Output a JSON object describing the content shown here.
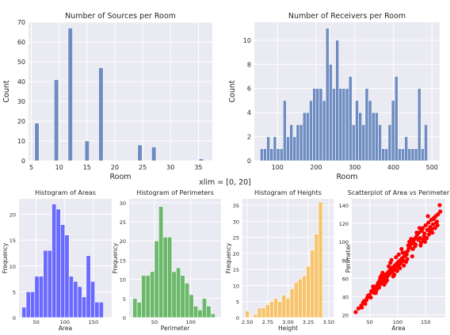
{
  "suptitle": "xlim = [0, 20]",
  "colors": {
    "panel_bg": "#eaeaf2",
    "grid": "#ffffff",
    "steel": "#6d8cc1",
    "blue": "#6a6aff",
    "green": "#6bb86b",
    "orange": "#f7c46c",
    "red": "#ff0000"
  },
  "chart_data": [
    {
      "type": "bar",
      "title": "Number of Sources per Room",
      "xlabel": "Room",
      "ylabel": "Count",
      "xlim": [
        4.5,
        37.5
      ],
      "ylim": [
        0,
        70
      ],
      "xticks": [
        5,
        10,
        15,
        20,
        25,
        30,
        35
      ],
      "yticks": [
        0,
        10,
        20,
        30,
        40,
        50,
        60,
        70
      ],
      "bin_width": 0.8,
      "bins": [
        {
          "x": 6.0,
          "y": 19
        },
        {
          "x": 9.5,
          "y": 41
        },
        {
          "x": 12.0,
          "y": 67
        },
        {
          "x": 15.0,
          "y": 10
        },
        {
          "x": 17.5,
          "y": 47
        },
        {
          "x": 24.5,
          "y": 8
        },
        {
          "x": 27.0,
          "y": 7
        },
        {
          "x": 35.5,
          "y": 1
        }
      ],
      "grid": true
    },
    {
      "type": "bar",
      "title": "Number of Receivers per Room",
      "xlabel": "Room",
      "ylabel": "Count",
      "xlim": [
        40,
        520
      ],
      "ylim": [
        0,
        11.5
      ],
      "xticks": [
        100,
        200,
        300,
        400,
        500
      ],
      "yticks": [
        0,
        2,
        4,
        6,
        8,
        10
      ],
      "bin_start": 55,
      "bin_width": 8.5,
      "counts": [
        1,
        1,
        2,
        1,
        2,
        1,
        1,
        5,
        2,
        3,
        2,
        3,
        3,
        4,
        4,
        5,
        6,
        6,
        6,
        5,
        11,
        8,
        6,
        10,
        6,
        6,
        6,
        7,
        3,
        5,
        4,
        3,
        6,
        5,
        4,
        4,
        3,
        1,
        1,
        3,
        5,
        7,
        1,
        1,
        2,
        1,
        1,
        1,
        6,
        1,
        3
      ],
      "grid": true
    },
    {
      "type": "bar",
      "title": "Histogram of Areas",
      "xlabel": "Area",
      "ylabel": "Frequency",
      "xlim": [
        20,
        182
      ],
      "ylim": [
        0,
        23
      ],
      "xticks": [
        50,
        100,
        150
      ],
      "yticks": [
        0,
        5,
        10,
        15,
        20
      ],
      "bin_start": 25,
      "bin_width": 7.5,
      "counts": [
        2,
        5,
        5,
        8,
        8,
        13,
        13,
        22,
        21,
        18,
        16,
        8,
        7,
        6,
        4,
        12,
        7,
        3,
        3
      ],
      "grid": true
    },
    {
      "type": "bar",
      "title": "Histogram of Perimeters",
      "xlabel": "Perimeter",
      "ylabel": "Frequency",
      "xlim": [
        15,
        142
      ],
      "ylim": [
        0,
        31
      ],
      "xticks": [
        50,
        100
      ],
      "yticks": [
        0,
        5,
        10,
        15,
        20,
        25,
        30
      ],
      "bin_start": 20,
      "bin_width": 6,
      "counts": [
        5,
        4,
        11,
        11,
        12,
        20,
        29,
        21,
        21,
        12,
        13,
        11,
        9,
        6,
        3,
        2,
        5,
        3,
        1
      ],
      "grid": true
    },
    {
      "type": "bar",
      "title": "Histogram of Heights",
      "xlabel": "Height",
      "ylabel": "Frequency",
      "xlim": [
        2.44,
        3.56
      ],
      "ylim": [
        0,
        37
      ],
      "xticks": [
        2.5,
        2.75,
        3.0,
        3.25,
        3.5
      ],
      "xticklabels": [
        "2.50",
        "2.75",
        "3.00",
        "3.25",
        "3.50"
      ],
      "yticks": [
        0,
        5,
        10,
        15,
        20,
        25,
        30,
        35
      ],
      "bin_start": 2.475,
      "bin_width": 0.05,
      "counts": [
        2,
        0,
        1,
        3,
        3,
        4,
        5,
        6,
        5,
        7,
        6,
        9,
        11,
        12,
        13,
        16,
        21,
        26,
        36
      ],
      "grid": true
    },
    {
      "type": "scatter",
      "title": "Scatterplot of Area vs Perimeter",
      "xlabel": "Area",
      "ylabel": "Perimeter",
      "xlim": [
        18,
        185
      ],
      "ylim": [
        17,
        147
      ],
      "xticks": [
        50,
        100,
        150
      ],
      "yticks": [
        20,
        40,
        60,
        80,
        100,
        120,
        140
      ],
      "points": [
        [
          25,
          23
        ],
        [
          30,
          27
        ],
        [
          35,
          30
        ],
        [
          38,
          33
        ],
        [
          40,
          35
        ],
        [
          42,
          32
        ],
        [
          45,
          38
        ],
        [
          48,
          40
        ],
        [
          50,
          42
        ],
        [
          52,
          39
        ],
        [
          55,
          45
        ],
        [
          57,
          48
        ],
        [
          60,
          50
        ],
        [
          62,
          47
        ],
        [
          63,
          52
        ],
        [
          65,
          55
        ],
        [
          67,
          50
        ],
        [
          68,
          58
        ],
        [
          70,
          54
        ],
        [
          72,
          60
        ],
        [
          74,
          57
        ],
        [
          75,
          62
        ],
        [
          77,
          59
        ],
        [
          78,
          64
        ],
        [
          80,
          61
        ],
        [
          82,
          66
        ],
        [
          83,
          63
        ],
        [
          85,
          68
        ],
        [
          86,
          65
        ],
        [
          88,
          70
        ],
        [
          90,
          67
        ],
        [
          91,
          72
        ],
        [
          93,
          69
        ],
        [
          95,
          74
        ],
        [
          96,
          71
        ],
        [
          98,
          76
        ],
        [
          100,
          73
        ],
        [
          101,
          78
        ],
        [
          103,
          75
        ],
        [
          105,
          80
        ],
        [
          106,
          77
        ],
        [
          108,
          82
        ],
        [
          110,
          79
        ],
        [
          112,
          84
        ],
        [
          114,
          88
        ],
        [
          116,
          86
        ],
        [
          118,
          90
        ],
        [
          120,
          93
        ],
        [
          122,
          95
        ],
        [
          125,
          98
        ],
        [
          128,
          100
        ],
        [
          130,
          103
        ],
        [
          133,
          105
        ],
        [
          135,
          108
        ],
        [
          138,
          110
        ],
        [
          140,
          104
        ],
        [
          143,
          112
        ],
        [
          145,
          115
        ],
        [
          148,
          109
        ],
        [
          150,
          118
        ],
        [
          153,
          113
        ],
        [
          155,
          121
        ],
        [
          158,
          116
        ],
        [
          160,
          124
        ],
        [
          163,
          119
        ],
        [
          165,
          126
        ],
        [
          168,
          128
        ],
        [
          170,
          122
        ],
        [
          172,
          130
        ],
        [
          175,
          140
        ],
        [
          176,
          133
        ],
        [
          58,
          44
        ],
        [
          66,
          52
        ],
        [
          73,
          66
        ],
        [
          79,
          56
        ],
        [
          84,
          73
        ],
        [
          92,
          62
        ],
        [
          97,
          83
        ],
        [
          104,
          71
        ],
        [
          109,
          88
        ],
        [
          115,
          78
        ],
        [
          121,
          100
        ],
        [
          127,
          92
        ],
        [
          132,
          97
        ],
        [
          137,
          102
        ],
        [
          142,
          99
        ],
        [
          147,
          106
        ],
        [
          152,
          104
        ],
        [
          157,
          112
        ],
        [
          162,
          110
        ],
        [
          167,
          115
        ],
        [
          44,
          36
        ],
        [
          53,
          46
        ],
        [
          61,
          44
        ],
        [
          69,
          61
        ],
        [
          76,
          53
        ],
        [
          87,
          77
        ],
        [
          94,
          64
        ],
        [
          102,
          86
        ],
        [
          111,
          74
        ],
        [
          119,
          96
        ],
        [
          126,
          84
        ],
        [
          134,
          110
        ],
        [
          141,
          96
        ],
        [
          149,
          100
        ],
        [
          156,
          108
        ],
        [
          164,
          125
        ],
        [
          171,
          118
        ],
        [
          36,
          28
        ],
        [
          47,
          41
        ],
        [
          56,
          51
        ],
        [
          64,
          49
        ],
        [
          71,
          63
        ],
        [
          81,
          58
        ],
        [
          89,
          80
        ],
        [
          99,
          68
        ],
        [
          107,
          92
        ],
        [
          117,
          81
        ],
        [
          124,
          103
        ],
        [
          131,
          95
        ],
        [
          139,
          115
        ],
        [
          146,
          102
        ],
        [
          154,
          128
        ],
        [
          161,
          114
        ],
        [
          169,
          121
        ]
      ],
      "grid": true
    }
  ]
}
